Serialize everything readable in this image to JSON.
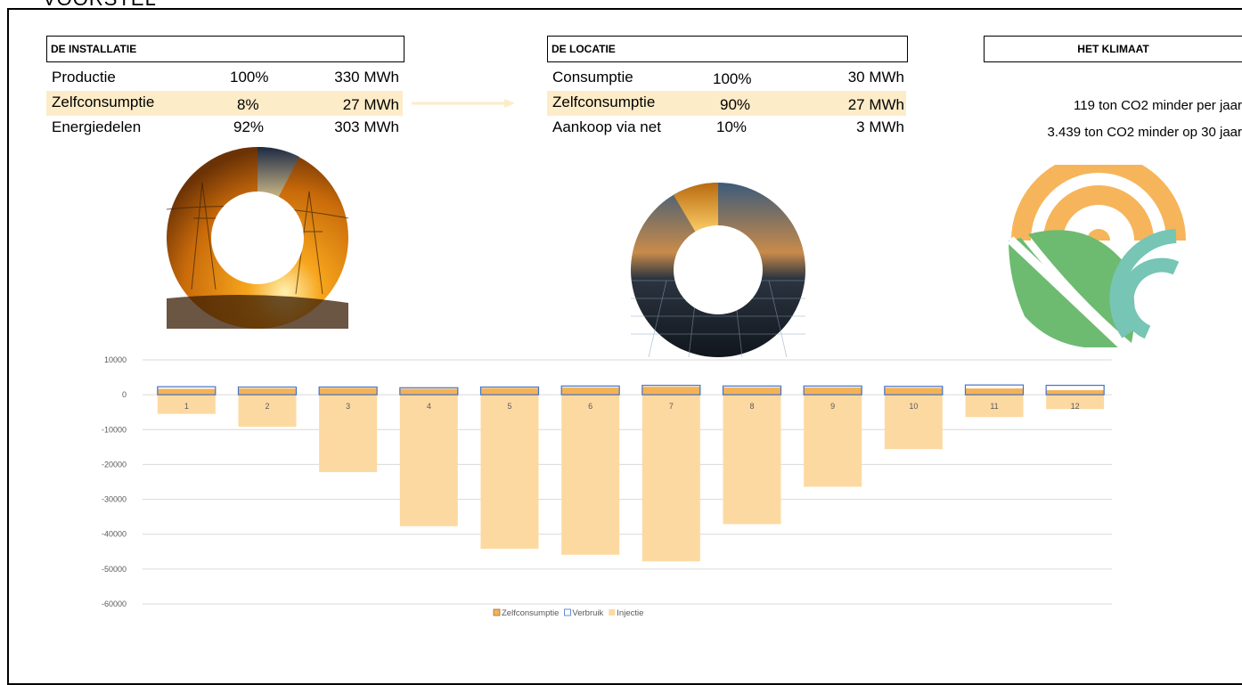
{
  "page": {
    "title": "VOORSTEL"
  },
  "installatie": {
    "header": "DE INSTALLATIE",
    "rows": [
      {
        "label": "Productie",
        "pct": "100%",
        "value": "330 MWh",
        "highlight": false
      },
      {
        "label": "Zelfconsumptie",
        "pct": "8%",
        "value": "27 MWh",
        "highlight": true
      },
      {
        "label": "Energiedelen",
        "pct": "92%",
        "value": "303 MWh",
        "highlight": false
      }
    ]
  },
  "locatie": {
    "header": "DE LOCATIE",
    "rows": [
      {
        "label": "Consumptie",
        "pct": "100%",
        "value": "30 MWh",
        "highlight": false
      },
      {
        "label": "Zelfconsumptie",
        "pct": "90%",
        "value": "27 MWh",
        "highlight": true
      },
      {
        "label": "Aankoop via net",
        "pct": "10%",
        "value": "3 MWh",
        "highlight": false
      }
    ]
  },
  "klimaat": {
    "header": "HET KLIMAAT",
    "line1": "119 ton CO2 minder per jaar",
    "line2": "3.439 ton CO2 minder op 30 jaar"
  },
  "colors": {
    "zelfconsumptie": "#f4b257",
    "verbruik": "#4472c4",
    "injectie": "#fdd9a2",
    "highlight": "#fdecc8"
  },
  "chart_data": {
    "type": "bar",
    "categories": [
      "1",
      "2",
      "3",
      "4",
      "5",
      "6",
      "7",
      "8",
      "9",
      "10",
      "11",
      "12"
    ],
    "series": [
      {
        "name": "Zelfconsumptie",
        "values": [
          1700,
          1800,
          1900,
          1700,
          1900,
          2100,
          2300,
          2100,
          2100,
          2000,
          1800,
          1300
        ]
      },
      {
        "name": "Verbruik",
        "values": [
          2300,
          2200,
          2200,
          2000,
          2200,
          2500,
          2700,
          2500,
          2500,
          2400,
          2800,
          2700
        ]
      },
      {
        "name": "Injectie",
        "values": [
          -5500,
          -9200,
          -22200,
          -37700,
          -44200,
          -45900,
          -47800,
          -37100,
          -26400,
          -15600,
          -6400,
          -4100
        ]
      }
    ],
    "yticks": [
      "10000",
      "0",
      "-10000",
      "-20000",
      "-30000",
      "-40000",
      "-50000",
      "-60000"
    ],
    "ylim": [
      -60000,
      10000
    ],
    "grid": true,
    "legend": "bottom"
  }
}
